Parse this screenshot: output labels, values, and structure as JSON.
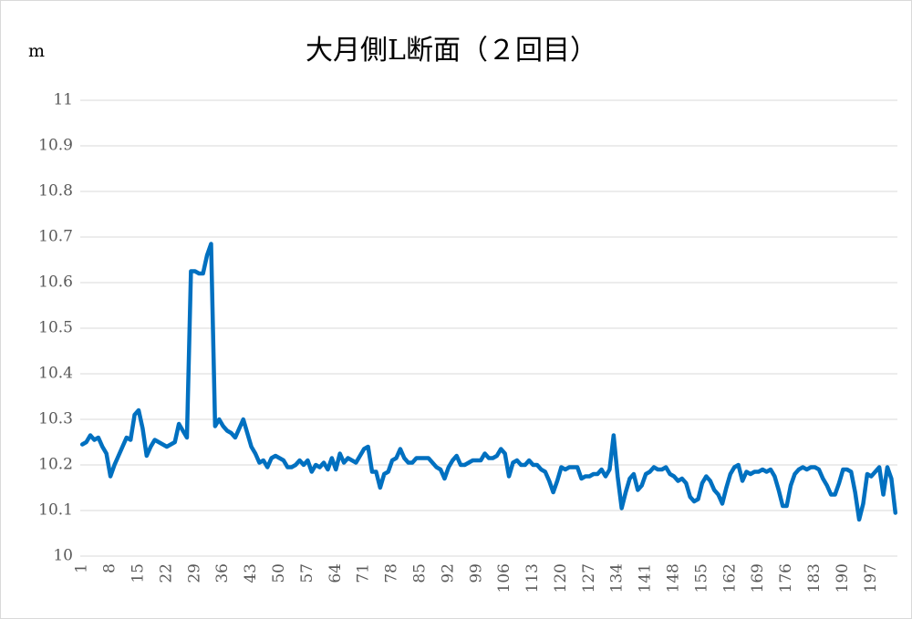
{
  "chart_data": {
    "type": "line",
    "title": "大月側L断面（２回目）",
    "y_label": "m",
    "categories": [
      "1",
      null,
      null,
      null,
      null,
      null,
      null,
      "8",
      null,
      null,
      null,
      null,
      null,
      null,
      "15",
      null,
      null,
      null,
      null,
      null,
      null,
      "22",
      null,
      null,
      null,
      null,
      null,
      null,
      "29",
      null,
      null,
      null,
      null,
      null,
      null,
      "36",
      null,
      null,
      null,
      null,
      null,
      null,
      "43",
      null,
      null,
      null,
      null,
      null,
      null,
      "50",
      null,
      null,
      null,
      null,
      null,
      null,
      "57",
      null,
      null,
      null,
      null,
      null,
      null,
      "64",
      null,
      null,
      null,
      null,
      null,
      null,
      "71",
      null,
      null,
      null,
      null,
      null,
      null,
      "78",
      null,
      null,
      null,
      null,
      null,
      null,
      "85",
      null,
      null,
      null,
      null,
      null,
      null,
      "92",
      null,
      null,
      null,
      null,
      null,
      null,
      "99",
      null,
      null,
      null,
      null,
      null,
      null,
      "106",
      null,
      null,
      null,
      null,
      null,
      null,
      "113",
      null,
      null,
      null,
      null,
      null,
      null,
      "120",
      null,
      null,
      null,
      null,
      null,
      null,
      "127",
      null,
      null,
      null,
      null,
      null,
      null,
      "134",
      null,
      null,
      null,
      null,
      null,
      null,
      "141",
      null,
      null,
      null,
      null,
      null,
      null,
      "148",
      null,
      null,
      null,
      null,
      null,
      null,
      "155",
      null,
      null,
      null,
      null,
      null,
      null,
      "162",
      null,
      null,
      null,
      null,
      null,
      null,
      "169",
      null,
      null,
      null,
      null,
      null,
      null,
      "176",
      null,
      null,
      null,
      null,
      null,
      null,
      "183",
      null,
      null,
      null,
      null,
      null,
      null,
      "190",
      null,
      null,
      null,
      null,
      null,
      null,
      "197",
      null,
      null,
      null,
      null,
      null,
      null
    ],
    "values": [
      10.245,
      10.25,
      10.265,
      10.255,
      10.26,
      10.24,
      10.225,
      10.175,
      10.2,
      10.22,
      10.24,
      10.26,
      10.255,
      10.31,
      10.32,
      10.28,
      10.22,
      10.24,
      10.255,
      10.25,
      10.245,
      10.24,
      10.245,
      10.25,
      10.29,
      10.275,
      10.26,
      10.625,
      10.625,
      10.62,
      10.62,
      10.66,
      10.685,
      10.285,
      10.3,
      10.285,
      10.275,
      10.27,
      10.26,
      10.28,
      10.3,
      10.27,
      10.24,
      10.225,
      10.205,
      10.21,
      10.195,
      10.215,
      10.22,
      10.215,
      10.21,
      10.195,
      10.195,
      10.2,
      10.21,
      10.2,
      10.21,
      10.185,
      10.2,
      10.195,
      10.205,
      10.19,
      10.215,
      10.19,
      10.225,
      10.205,
      10.215,
      10.21,
      10.205,
      10.22,
      10.235,
      10.24,
      10.185,
      10.185,
      10.15,
      10.18,
      10.185,
      10.21,
      10.215,
      10.235,
      10.215,
      10.205,
      10.205,
      10.215,
      10.215,
      10.215,
      10.215,
      10.205,
      10.195,
      10.19,
      10.17,
      10.195,
      10.21,
      10.22,
      10.2,
      10.2,
      10.205,
      10.21,
      10.21,
      10.21,
      10.225,
      10.215,
      10.215,
      10.22,
      10.235,
      10.225,
      10.175,
      10.205,
      10.21,
      10.2,
      10.2,
      10.21,
      10.2,
      10.2,
      10.19,
      10.185,
      10.165,
      10.14,
      10.165,
      10.195,
      10.19,
      10.195,
      10.195,
      10.195,
      10.17,
      10.175,
      10.175,
      10.18,
      10.18,
      10.19,
      10.175,
      10.19,
      10.265,
      10.175,
      10.105,
      10.14,
      10.17,
      10.18,
      10.145,
      10.155,
      10.18,
      10.185,
      10.195,
      10.19,
      10.19,
      10.195,
      10.18,
      10.175,
      10.165,
      10.17,
      10.16,
      10.13,
      10.12,
      10.125,
      10.16,
      10.175,
      10.165,
      10.145,
      10.135,
      10.115,
      10.15,
      10.18,
      10.195,
      10.2,
      10.165,
      10.185,
      10.18,
      10.185,
      10.185,
      10.19,
      10.185,
      10.19,
      10.175,
      10.145,
      10.11,
      10.11,
      10.155,
      10.18,
      10.19,
      10.195,
      10.19,
      10.195,
      10.195,
      10.19,
      10.17,
      10.155,
      10.135,
      10.135,
      10.16,
      10.19,
      10.19,
      10.185,
      10.14,
      10.08,
      10.115,
      10.18,
      10.175,
      10.185,
      10.195,
      10.135,
      10.195,
      10.17,
      10.095
    ],
    "color": "#0070c0",
    "ylim": [
      10,
      11
    ],
    "yticks": [
      10,
      10.1,
      10.2,
      10.3,
      10.4,
      10.5,
      10.6,
      10.7,
      10.8,
      10.9,
      11
    ],
    "grid": true
  }
}
